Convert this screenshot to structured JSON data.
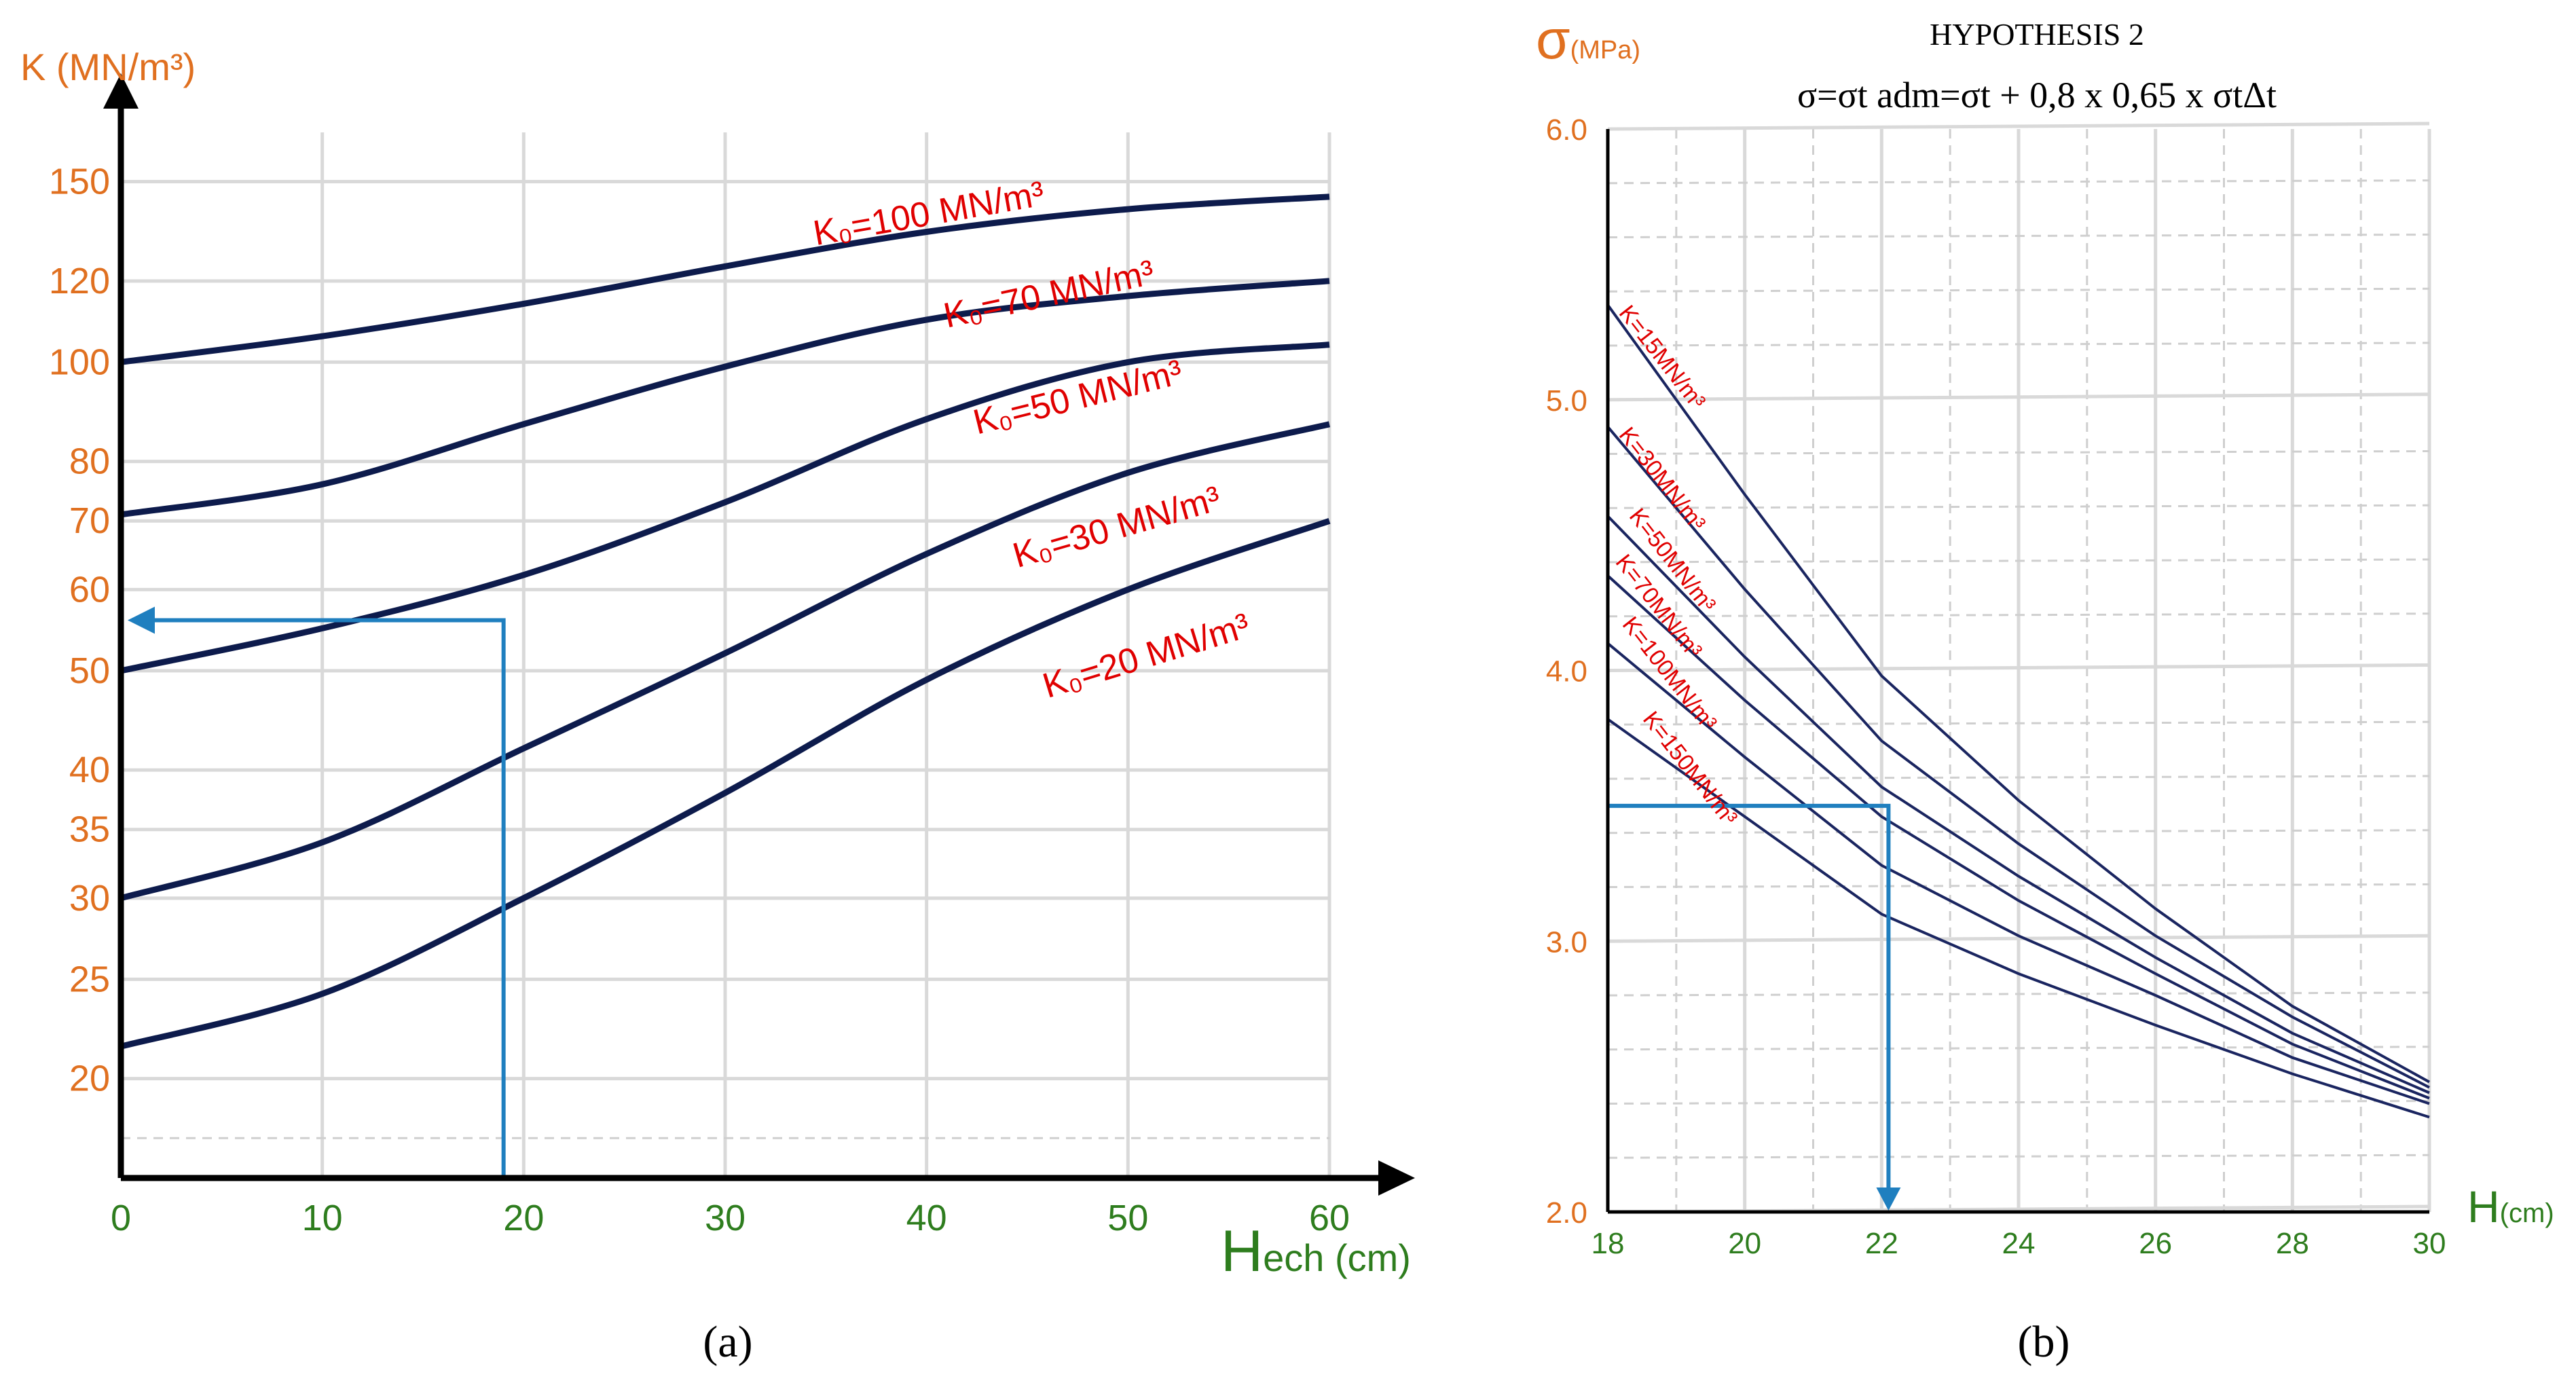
{
  "colors": {
    "tick_y": "#e07020",
    "tick_x": "#2e7d1e",
    "curve": "#0d1b4c",
    "curve_label": "#e00000",
    "guide": "#1f7fbf",
    "grid": "#d9d9d9"
  },
  "chart_data": [
    {
      "panel": "a",
      "panel_label": "(a)",
      "type": "line",
      "title": "",
      "ylabel": "K (MN/m³)",
      "xlabel_main": "H",
      "xlabel_sub": "ech (cm)",
      "xlim": [
        0,
        60
      ],
      "ylim": [
        16,
        165
      ],
      "yscale": "log",
      "grid": true,
      "x_ticks": [
        0,
        10,
        20,
        30,
        40,
        50,
        60
      ],
      "x_tick_labels": [
        "0",
        "10",
        "20",
        "30",
        "40",
        "50",
        "60"
      ],
      "y_ticks": [
        20,
        25,
        30,
        35,
        40,
        50,
        60,
        70,
        80,
        100,
        120,
        150
      ],
      "y_tick_labels": [
        "20",
        "25",
        "30",
        "35",
        "40",
        "50",
        "60",
        "70",
        "80",
        "100",
        "120",
        "150"
      ],
      "series": [
        {
          "name": "K₀=100 MN/m³",
          "x": [
            0,
            10,
            20,
            30,
            40,
            50,
            60
          ],
          "y": [
            100,
            106,
            114,
            124,
            134,
            141,
            145
          ]
        },
        {
          "name": "K₀=70 MN/m³",
          "x": [
            0,
            10,
            20,
            30,
            40,
            50,
            60
          ],
          "y": [
            71,
            76,
            87,
            99,
            110,
            116,
            120
          ]
        },
        {
          "name": "K₀=50 MN/m³",
          "x": [
            0,
            10,
            20,
            30,
            40,
            50,
            60
          ],
          "y": [
            50,
            55,
            62,
            73,
            88,
            100,
            104
          ]
        },
        {
          "name": "K₀=30 MN/m³",
          "x": [
            0,
            10,
            20,
            30,
            40,
            50,
            60
          ],
          "y": [
            30,
            34,
            42,
            52,
            65,
            78,
            87
          ]
        },
        {
          "name": "K₀=20 MN/m³",
          "x": [
            0,
            10,
            20,
            30,
            40,
            50,
            60
          ],
          "y": [
            21.5,
            24.2,
            30,
            38,
            49,
            60,
            70
          ]
        }
      ],
      "guide_line": {
        "x": 19,
        "y": 56
      }
    },
    {
      "panel": "b",
      "panel_label": "(b)",
      "type": "line",
      "title": "HYPOTHESIS  2",
      "formula": "σ=σt adm=σt + 0,8 x 0,65 x σtΔt",
      "ylabel_main": "σ",
      "ylabel_sub": "(MPa)",
      "xlabel_main": "H",
      "xlabel_sub": "(cm)",
      "xlim": [
        18,
        30
      ],
      "ylim": [
        2.0,
        6.0
      ],
      "grid": true,
      "x_ticks": [
        18,
        20,
        22,
        24,
        26,
        28,
        30
      ],
      "x_tick_labels": [
        "18",
        "20",
        "22",
        "24",
        "26",
        "28",
        "30"
      ],
      "y_ticks": [
        2.0,
        3.0,
        4.0,
        5.0,
        6.0
      ],
      "y_tick_labels": [
        "2.0",
        "3.0",
        "4.0",
        "5.0",
        "6.0"
      ],
      "series": [
        {
          "name": "K=15MN/m³",
          "x": [
            18,
            20,
            22,
            24,
            26,
            28,
            30
          ],
          "y": [
            5.35,
            4.65,
            3.98,
            3.52,
            3.12,
            2.76,
            2.48
          ]
        },
        {
          "name": "K=30MN/m³",
          "x": [
            18,
            20,
            22,
            24,
            26,
            28,
            30
          ],
          "y": [
            4.9,
            4.3,
            3.74,
            3.36,
            3.02,
            2.72,
            2.46
          ]
        },
        {
          "name": "K=50MN/m³",
          "x": [
            18,
            20,
            22,
            24,
            26,
            28,
            30
          ],
          "y": [
            4.57,
            4.05,
            3.57,
            3.24,
            2.94,
            2.66,
            2.44
          ]
        },
        {
          "name": "K=70MN/m³",
          "x": [
            18,
            20,
            22,
            24,
            26,
            28,
            30
          ],
          "y": [
            4.35,
            3.89,
            3.46,
            3.15,
            2.88,
            2.62,
            2.42
          ]
        },
        {
          "name": "K=100MN/m³",
          "x": [
            18,
            20,
            22,
            24,
            26,
            28,
            30
          ],
          "y": [
            4.1,
            3.68,
            3.28,
            3.02,
            2.8,
            2.57,
            2.4
          ]
        },
        {
          "name": "K=150MN/m³",
          "x": [
            18,
            20,
            22,
            24,
            26,
            28,
            30
          ],
          "y": [
            3.82,
            3.46,
            3.1,
            2.88,
            2.69,
            2.51,
            2.35
          ]
        }
      ],
      "guide_line": {
        "x": 22.1,
        "y": 3.5
      }
    }
  ]
}
